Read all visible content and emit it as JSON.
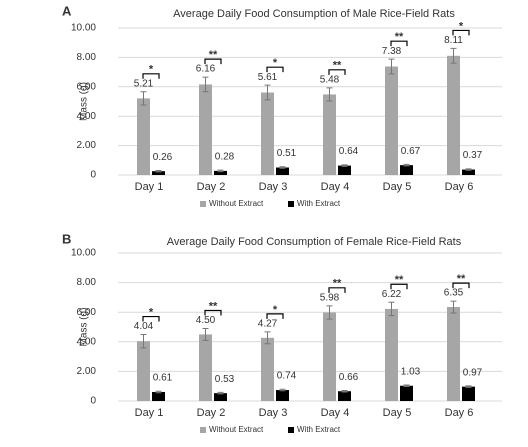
{
  "chart_data": [
    {
      "type": "bar",
      "panel": "A",
      "title": "Average Daily Food Consumption of Male Rice-Field Rats",
      "y_label": "Mass (g)",
      "categories": [
        "Day 1",
        "Day 2",
        "Day 3",
        "Day 4",
        "Day 5",
        "Day 6"
      ],
      "series": [
        {
          "name": "Without Extract",
          "color": "#a6a6a6",
          "values": [
            5.21,
            6.16,
            5.61,
            5.48,
            7.38,
            8.11
          ],
          "value_labels": [
            "5.21",
            "6.16",
            "5.61",
            "5.48",
            "7.38",
            "8.11"
          ],
          "errors": [
            0.45,
            0.5,
            0.5,
            0.45,
            0.5,
            0.5
          ]
        },
        {
          "name": "With Extract",
          "color": "#000000",
          "values": [
            0.26,
            0.28,
            0.51,
            0.64,
            0.67,
            0.37
          ],
          "value_labels": [
            "0.26",
            "0.28",
            "0.51",
            "0.64",
            "0.67",
            "0.37"
          ],
          "errors": [
            0.05,
            0.05,
            0.05,
            0.05,
            0.05,
            0.05
          ]
        }
      ],
      "significance": [
        "*",
        "**",
        "*",
        "**",
        "**",
        "*"
      ],
      "ylim": [
        0,
        10
      ],
      "yticks": [
        0,
        {
          "value": 2,
          "label": "2.00"
        },
        {
          "value": 4,
          "label": "4.00"
        },
        {
          "value": 6,
          "label": "6.00"
        },
        {
          "value": 8,
          "label": "8.00"
        },
        {
          "value": 10,
          "label": "10.00"
        }
      ],
      "grid": true
    },
    {
      "type": "bar",
      "panel": "B",
      "title": "Average Daily Food Consumption of Female Rice-Field Rats",
      "y_label": "Mass (g)",
      "categories": [
        "Day 1",
        "Day 2",
        "Day 3",
        "Day 4",
        "Day 5",
        "Day 6"
      ],
      "series": [
        {
          "name": "Without Extract",
          "color": "#a6a6a6",
          "values": [
            4.04,
            4.5,
            4.27,
            5.98,
            6.22,
            6.35
          ],
          "value_labels": [
            "4.04",
            "4.50",
            "4.27",
            "5.98",
            "6.22",
            "6.35"
          ],
          "errors": [
            0.45,
            0.4,
            0.4,
            0.45,
            0.45,
            0.4
          ]
        },
        {
          "name": "With Extract",
          "color": "#000000",
          "values": [
            0.61,
            0.53,
            0.74,
            0.66,
            1.03,
            0.97
          ],
          "value_labels": [
            "0.61",
            "0.53",
            "0.74",
            "0.66",
            "1.03",
            "0.97"
          ],
          "errors": [
            0.05,
            0.05,
            0.05,
            0.05,
            0.05,
            0.05
          ]
        }
      ],
      "significance": [
        "*",
        "**",
        "*",
        "**",
        "**",
        "**"
      ],
      "ylim": [
        0,
        10
      ],
      "yticks": [
        0,
        {
          "value": 2,
          "label": "2.00"
        },
        {
          "value": 4,
          "label": "4.00"
        },
        {
          "value": 6,
          "label": "6.00"
        },
        {
          "value": 8,
          "label": "8.00"
        },
        {
          "value": 10,
          "label": "10.00"
        }
      ],
      "grid": true
    }
  ]
}
